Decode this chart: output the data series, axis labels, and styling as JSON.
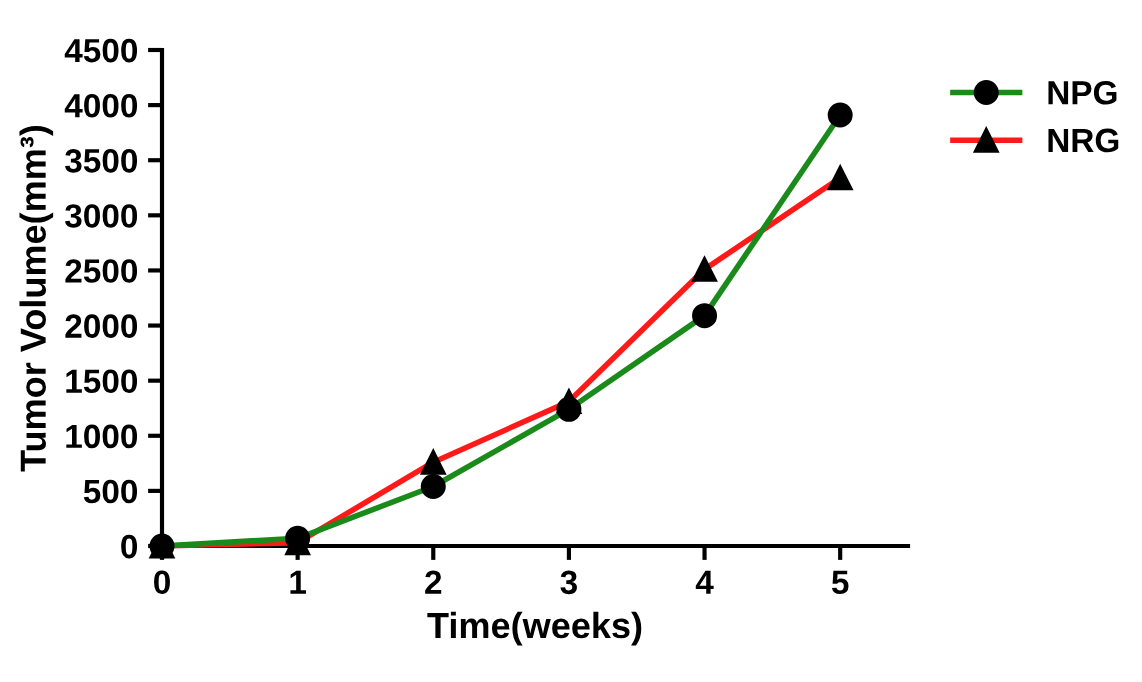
{
  "chart_data": {
    "type": "line",
    "xlabel": "Time(weeks)",
    "ylabel": "Tumor Volume(mm³)",
    "x": [
      0,
      1,
      2,
      3,
      4,
      5
    ],
    "series": [
      {
        "name": "NPG",
        "color": "#1a8a1a",
        "marker": "circle",
        "values": [
          0,
          70,
          540,
          1240,
          2090,
          3910
        ]
      },
      {
        "name": "NRG",
        "color": "#ff1a1a",
        "marker": "triangle",
        "values": [
          0,
          30,
          760,
          1310,
          2510,
          3340
        ]
      }
    ],
    "xlim": [
      0,
      5.5
    ],
    "xticks": [
      0,
      1,
      2,
      3,
      4,
      5
    ],
    "ylim": [
      0,
      4500
    ],
    "yticks": [
      0,
      500,
      1000,
      1500,
      2000,
      2500,
      3000,
      3500,
      4000,
      4500
    ],
    "grid": false,
    "legend": "top right",
    "line_style": "solid"
  }
}
